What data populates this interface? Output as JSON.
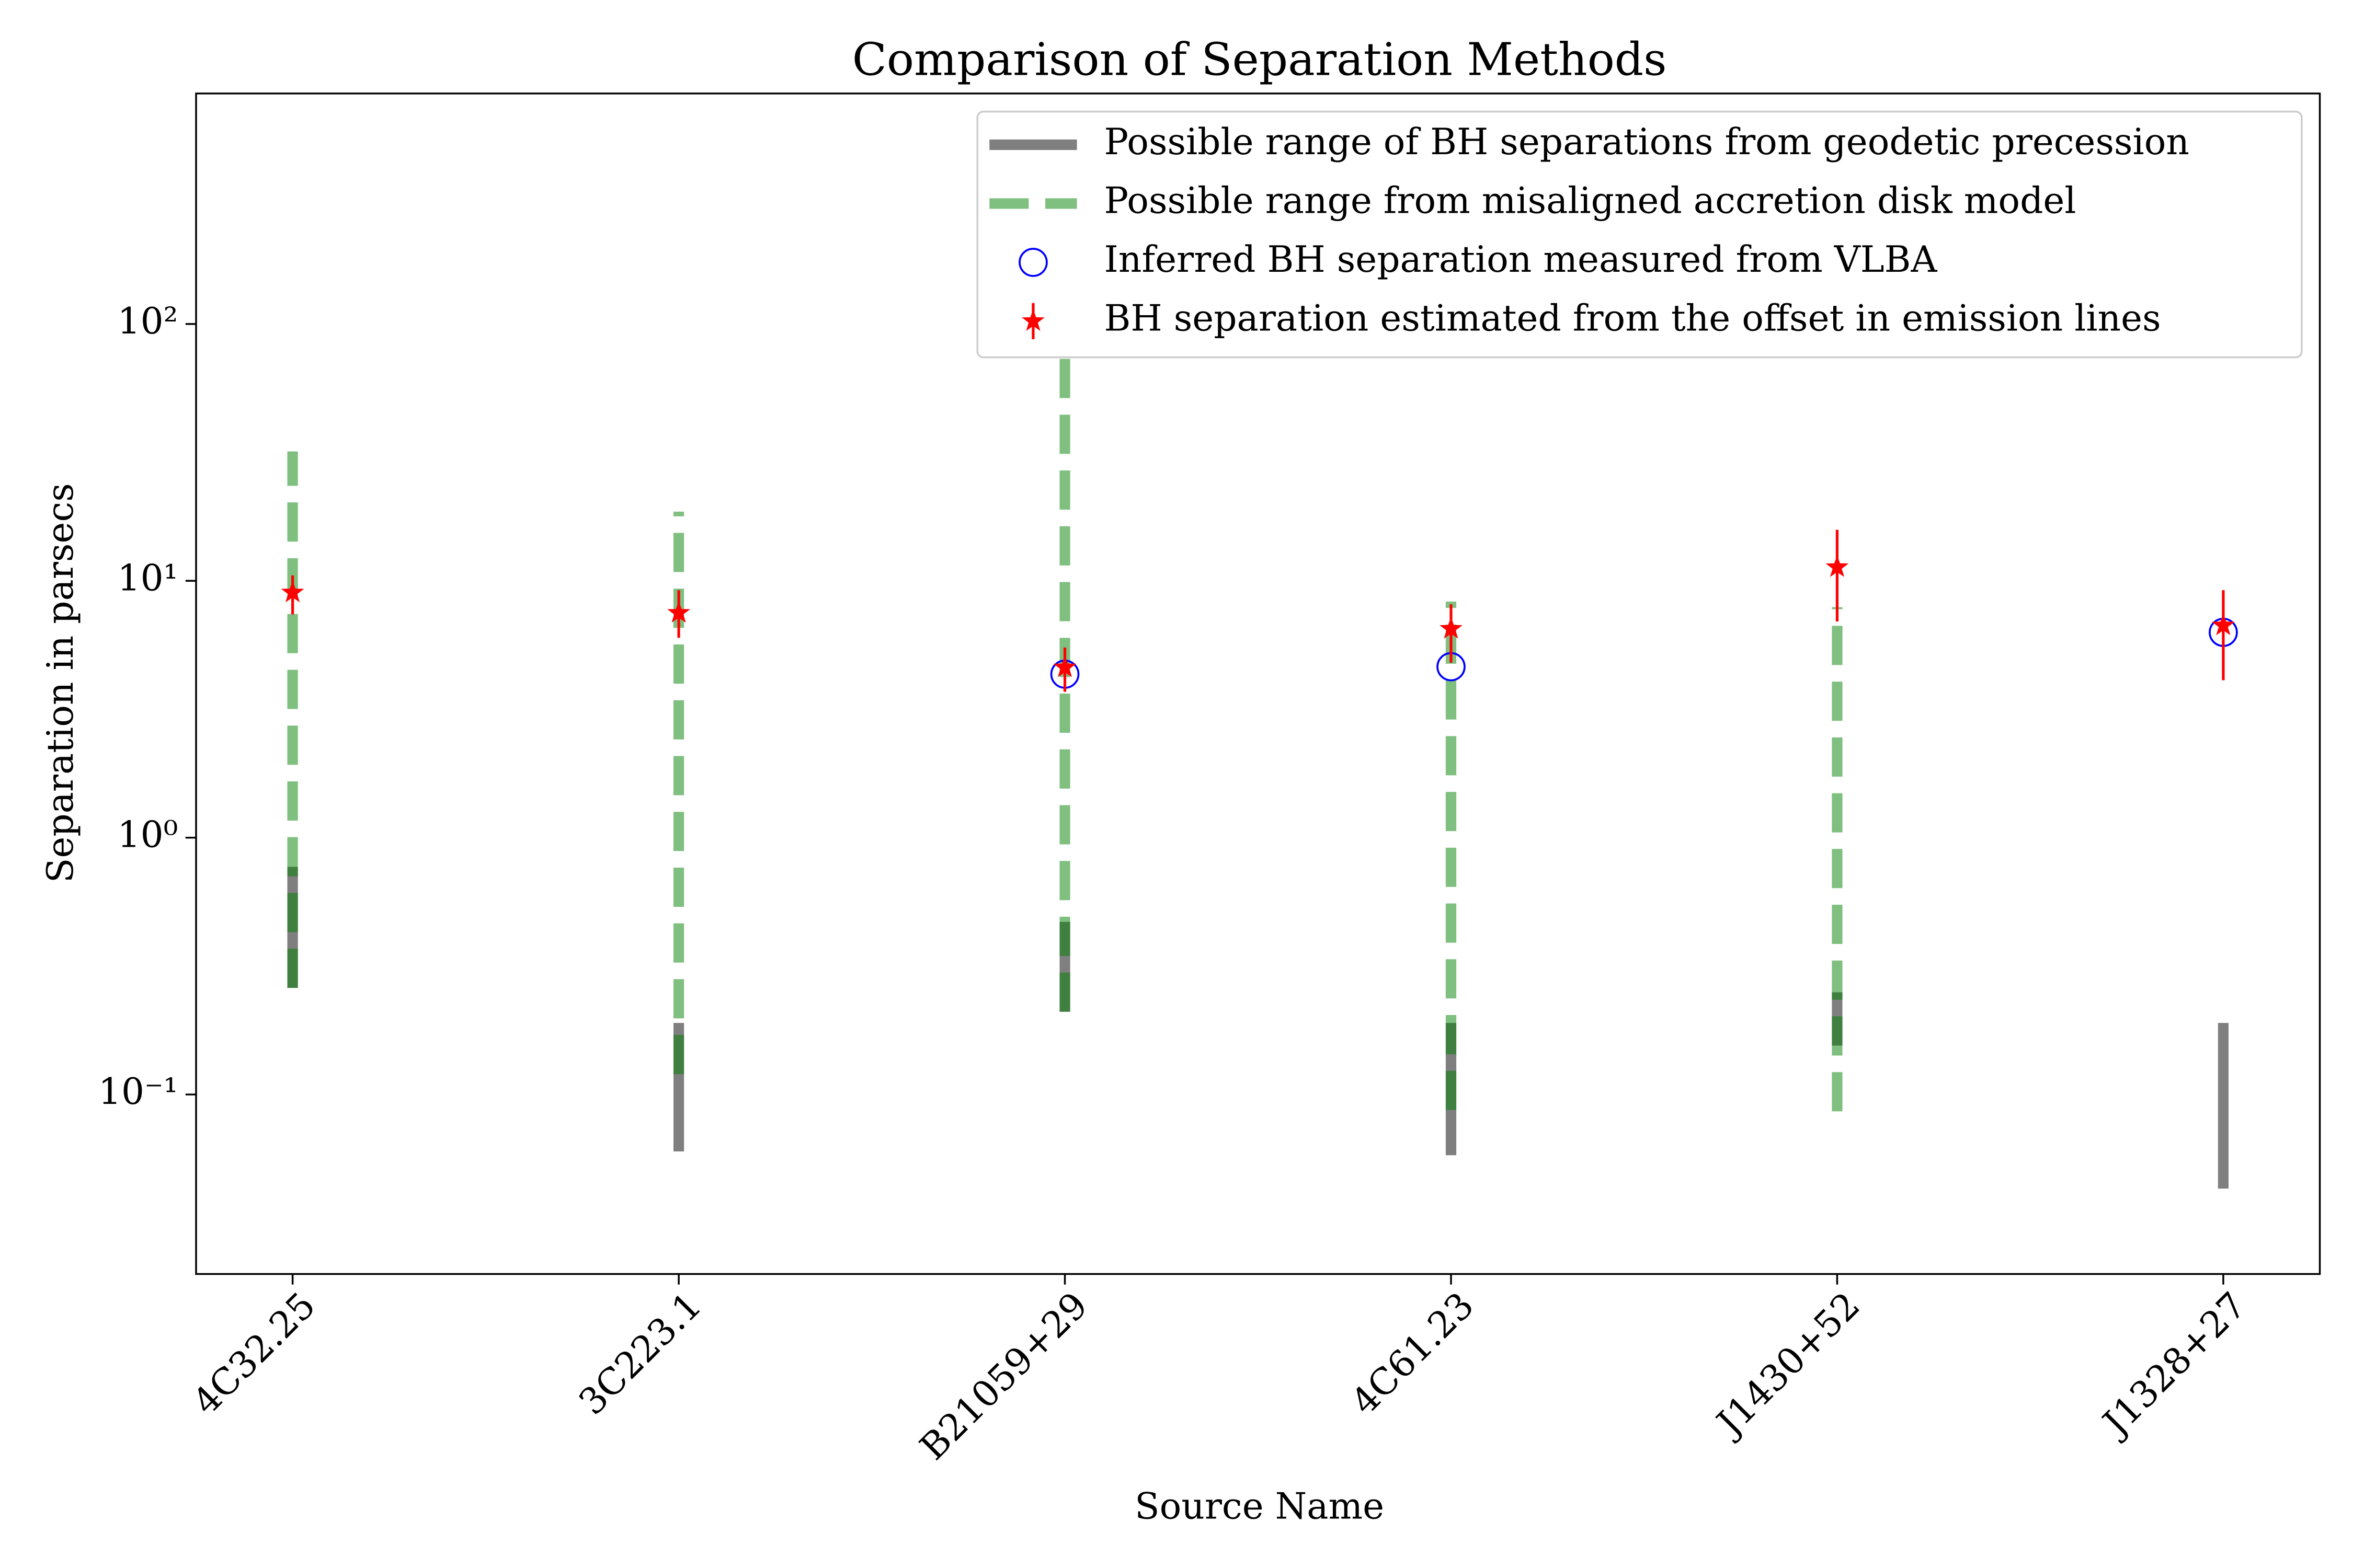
{
  "chart_data": {
    "type": "errorbar",
    "title": "Comparison of Separation Methods",
    "xlabel": "Source Name",
    "ylabel": "Separation in parsecs",
    "categories": [
      "4C32.25",
      "3C223.1",
      "B21059+29",
      "4C61.23",
      "J1430+52",
      "J1328+27"
    ],
    "ylim": [
      0.02,
      790
    ],
    "log_y": true,
    "yticks": [
      {
        "value": 0.1,
        "label": "10⁻¹"
      },
      {
        "value": 1,
        "label": "10⁰"
      },
      {
        "value": 10,
        "label": "10¹"
      },
      {
        "value": 100,
        "label": "10²"
      }
    ],
    "legend": "upper right",
    "series": [
      {
        "name": "Possible range of BH separations from geodetic precession",
        "kind": "range",
        "dashed": false,
        "color": "#000000",
        "low": [
          0.26,
          0.06,
          0.21,
          0.058,
          0.155,
          0.043
        ],
        "high": [
          0.77,
          0.19,
          0.47,
          0.19,
          0.25,
          0.19
        ]
      },
      {
        "name": "Possible range from misaligned accretion disk model",
        "kind": "range",
        "dashed": true,
        "color": "#008000",
        "low": [
          0.26,
          0.12,
          0.21,
          0.087,
          0.086,
          null
        ],
        "high": [
          31.9,
          18.6,
          75,
          8.3,
          7.9,
          null
        ]
      },
      {
        "name": "Inferred BH separation measured from VLBA",
        "kind": "circle",
        "color": "#0000ff",
        "values": [
          null,
          null,
          4.33,
          4.63,
          null,
          6.3
        ]
      },
      {
        "name": "BH separation estimated from the offset in emission lines",
        "kind": "star",
        "color": "#ff0000",
        "values": [
          9.0,
          7.5,
          4.6,
          6.5,
          11.3,
          6.7
        ],
        "lower": [
          7.4,
          6.0,
          3.7,
          4.8,
          6.95,
          4.1
        ],
        "upper": [
          10.5,
          9.2,
          5.5,
          8.1,
          15.8,
          9.2
        ]
      }
    ]
  }
}
